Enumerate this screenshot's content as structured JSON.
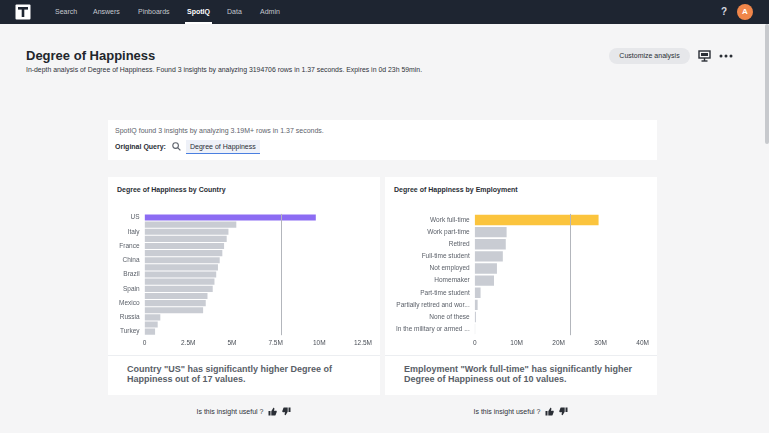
{
  "nav": {
    "items": [
      "Search",
      "Answers",
      "Pinboards",
      "SpotIQ",
      "Data",
      "Admin"
    ],
    "active": "SpotIQ",
    "help": "?",
    "avatar": "A"
  },
  "header": {
    "title": "Degree of Happiness",
    "subtitle": "In-depth analysis of Degree of Happiness. Found 3 insights by analyzing 3194706 rows in 1.37 seconds. Expires in 0d 23h 59min.",
    "button": "Customize analysis"
  },
  "summary": {
    "text": "SpotIQ found 3 insights by analyzing 3.19M+ rows in 1.37 seconds.",
    "query_label": "Original Query:",
    "query": "Degree of Happiness"
  },
  "chart_data": [
    {
      "type": "bar",
      "orientation": "horizontal",
      "title": "Degree of Happiness by Country",
      "categories": [
        "US",
        null,
        "Italy",
        null,
        "France",
        null,
        "China",
        null,
        "Brazil",
        null,
        "Spain",
        null,
        "Mexico",
        null,
        "Russia",
        null,
        "Turkey"
      ],
      "values": [
        9800000,
        5250000,
        4800000,
        4700000,
        4550000,
        4450000,
        4300000,
        4200000,
        4100000,
        4000000,
        3900000,
        3600000,
        3500000,
        3350000,
        900000,
        750000,
        600000
      ],
      "colors": [
        "#8c6cf3",
        "#c9ccd3",
        "#c9ccd3",
        "#c9ccd3",
        "#c9ccd3",
        "#c9ccd3",
        "#c9ccd3",
        "#c9ccd3",
        "#c9ccd3",
        "#c9ccd3",
        "#c9ccd3",
        "#c9ccd3",
        "#c9ccd3",
        "#c9ccd3",
        "#c9ccd3",
        "#c9ccd3",
        "#c9ccd3"
      ],
      "xlim": [
        0,
        12500000
      ],
      "xticks": [
        0,
        {
          "value": 2500000,
          "label": "2.5M"
        },
        {
          "value": 5000000,
          "label": "5M"
        },
        {
          "value": 7500000,
          "label": "7.5M"
        },
        {
          "value": 10000000,
          "label": "10M"
        },
        {
          "value": 12500000,
          "label": "12.5M"
        }
      ],
      "grid": false,
      "reference_line": 7800000
    },
    {
      "type": "bar",
      "orientation": "horizontal",
      "title": "Degree of Happiness by Employment",
      "categories": [
        "Work full-time",
        "Work part-time",
        "Retired",
        "Full-time student",
        "Not employed",
        "Homemaker",
        "Part-time student",
        "Partially retired and wor...",
        "None of these",
        "In the military or armed ..."
      ],
      "values": [
        29500000,
        7600000,
        7400000,
        6700000,
        5300000,
        4600000,
        1400000,
        700000,
        300000,
        100000
      ],
      "colors": [
        "#fbc43d",
        "#c9ccd3",
        "#c9ccd3",
        "#c9ccd3",
        "#c9ccd3",
        "#c9ccd3",
        "#c9ccd3",
        "#c9ccd3",
        "#c9ccd3",
        "#c9ccd3"
      ],
      "xlim": [
        0,
        40000000
      ],
      "xticks": [
        0,
        {
          "value": 10000000,
          "label": "10M"
        },
        {
          "value": 20000000,
          "label": "20M"
        },
        {
          "value": 30000000,
          "label": "30M"
        },
        {
          "value": 40000000,
          "label": "40M"
        }
      ],
      "grid": false,
      "reference_line": 22800000
    }
  ],
  "insights": [
    {
      "text": "Country \"US\" has significantly higher Degree of Happiness out of 17 values.",
      "feedback": "Is this insight useful ?"
    },
    {
      "text": "Employment \"Work full-time\" has significantly higher Degree of Happiness out of 10 values.",
      "feedback": "Is this insight useful ?"
    }
  ]
}
